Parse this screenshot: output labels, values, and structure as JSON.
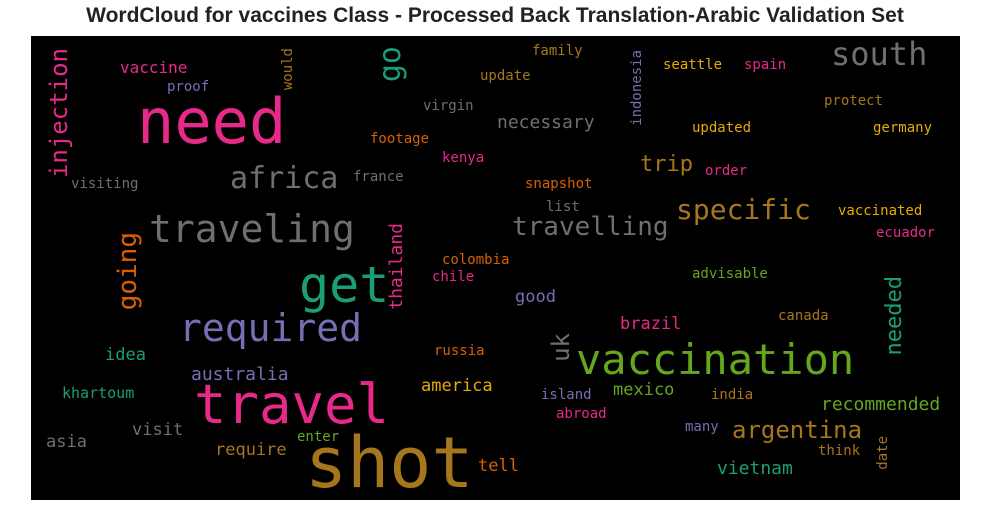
{
  "title": "WordCloud for vaccines Class - Processed Back Translation-Arabic Validation Set",
  "colors": {
    "background": "#000000",
    "gray": "#6f6f6f",
    "pink": "#e7298a",
    "green": "#1b9e77",
    "olive": "#66a61e",
    "purple": "#7570b3",
    "orange": "#d95f02",
    "gold": "#e6ab02",
    "brown": "#a6761d"
  },
  "chart_data": {
    "type": "wordcloud",
    "words": [
      {
        "text": "need",
        "color": "pink",
        "weight": 62
      },
      {
        "text": "shot",
        "color": "brown",
        "weight": 70
      },
      {
        "text": "travel",
        "color": "pink",
        "weight": 54
      },
      {
        "text": "vaccination",
        "color": "olive",
        "weight": 42
      },
      {
        "text": "get",
        "color": "green",
        "weight": 50
      },
      {
        "text": "required",
        "color": "purple",
        "weight": 38
      },
      {
        "text": "traveling",
        "color": "gray",
        "weight": 38
      },
      {
        "text": "africa",
        "color": "gray",
        "weight": 30
      },
      {
        "text": "south",
        "color": "gray",
        "weight": 32
      },
      {
        "text": "go",
        "color": "green",
        "weight": 30
      },
      {
        "text": "specific",
        "color": "brown",
        "weight": 28
      },
      {
        "text": "travelling",
        "color": "gray",
        "weight": 26
      },
      {
        "text": "argentina",
        "color": "brown",
        "weight": 24
      },
      {
        "text": "going",
        "color": "orange",
        "weight": 26
      },
      {
        "text": "injection",
        "color": "pink",
        "weight": 24
      },
      {
        "text": "trip",
        "color": "brown",
        "weight": 22
      },
      {
        "text": "needed",
        "color": "green",
        "weight": 22
      },
      {
        "text": "uk",
        "color": "gray",
        "weight": 24
      },
      {
        "text": "vaccine",
        "color": "pink",
        "weight": 16
      },
      {
        "text": "necessary",
        "color": "gray",
        "weight": 18
      },
      {
        "text": "thailand",
        "color": "pink",
        "weight": 18
      },
      {
        "text": "australia",
        "color": "purple",
        "weight": 18
      },
      {
        "text": "recommended",
        "color": "olive",
        "weight": 18
      },
      {
        "text": "vietnam",
        "color": "green",
        "weight": 18
      },
      {
        "text": "brazil",
        "color": "pink",
        "weight": 17
      },
      {
        "text": "idea",
        "color": "green",
        "weight": 17
      },
      {
        "text": "america",
        "color": "gold",
        "weight": 17
      },
      {
        "text": "mexico",
        "color": "olive",
        "weight": 17
      },
      {
        "text": "tell",
        "color": "orange",
        "weight": 17
      },
      {
        "text": "good",
        "color": "purple",
        "weight": 17
      },
      {
        "text": "require",
        "color": "brown",
        "weight": 17
      },
      {
        "text": "visit",
        "color": "gray",
        "weight": 17
      },
      {
        "text": "asia",
        "color": "gray",
        "weight": 17
      },
      {
        "text": "khartoum",
        "color": "green",
        "weight": 15
      },
      {
        "text": "proof",
        "color": "purple",
        "weight": 14
      },
      {
        "text": "would",
        "color": "brown",
        "weight": 14
      },
      {
        "text": "virgin",
        "color": "gray",
        "weight": 14
      },
      {
        "text": "update",
        "color": "brown",
        "weight": 14
      },
      {
        "text": "family",
        "color": "brown",
        "weight": 14
      },
      {
        "text": "indonesia",
        "color": "purple",
        "weight": 14
      },
      {
        "text": "seattle",
        "color": "gold",
        "weight": 14
      },
      {
        "text": "spain",
        "color": "pink",
        "weight": 14
      },
      {
        "text": "protect",
        "color": "brown",
        "weight": 14
      },
      {
        "text": "updated",
        "color": "gold",
        "weight": 14
      },
      {
        "text": "germany",
        "color": "gold",
        "weight": 14
      },
      {
        "text": "footage",
        "color": "orange",
        "weight": 14
      },
      {
        "text": "kenya",
        "color": "pink",
        "weight": 14
      },
      {
        "text": "visiting",
        "color": "gray",
        "weight": 14
      },
      {
        "text": "france",
        "color": "gray",
        "weight": 14
      },
      {
        "text": "order",
        "color": "pink",
        "weight": 14
      },
      {
        "text": "snapshot",
        "color": "orange",
        "weight": 14
      },
      {
        "text": "list",
        "color": "gray",
        "weight": 14
      },
      {
        "text": "vaccinated",
        "color": "gold",
        "weight": 14
      },
      {
        "text": "ecuador",
        "color": "pink",
        "weight": 14
      },
      {
        "text": "colombia",
        "color": "orange",
        "weight": 14
      },
      {
        "text": "chile",
        "color": "pink",
        "weight": 14
      },
      {
        "text": "advisable",
        "color": "olive",
        "weight": 14
      },
      {
        "text": "canada",
        "color": "brown",
        "weight": 14
      },
      {
        "text": "russia",
        "color": "orange",
        "weight": 14
      },
      {
        "text": "island",
        "color": "purple",
        "weight": 14
      },
      {
        "text": "abroad",
        "color": "pink",
        "weight": 14
      },
      {
        "text": "india",
        "color": "brown",
        "weight": 14
      },
      {
        "text": "many",
        "color": "purple",
        "weight": 14
      },
      {
        "text": "think",
        "color": "brown",
        "weight": 14
      },
      {
        "text": "date",
        "color": "brown",
        "weight": 14
      },
      {
        "text": "enter",
        "color": "olive",
        "weight": 14
      }
    ]
  }
}
